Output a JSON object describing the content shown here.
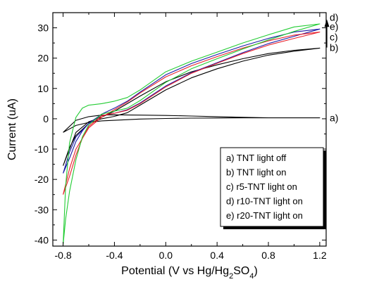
{
  "chart_data": {
    "type": "line",
    "title": "",
    "xlabel": "Potential (V vs Hg/Hg2SO4)",
    "xlabel_parts": {
      "prefix": "Potential (V vs Hg/Hg",
      "sub1": "2",
      "mid": "SO",
      "sub2": "4",
      "suffix": ")"
    },
    "ylabel": "Current (uA)",
    "xlim": [
      -0.88,
      1.25
    ],
    "ylim": [
      -42,
      35
    ],
    "xticks": [
      -0.8,
      -0.4,
      0.0,
      0.4,
      0.8,
      1.2
    ],
    "xtick_labels": [
      "-0.8",
      "-0.4",
      "0.0",
      "0.4",
      "0.8",
      "1.2"
    ],
    "yticks": [
      -40,
      -30,
      -20,
      -10,
      0,
      10,
      20,
      30
    ],
    "ytick_labels": [
      "-40",
      "-30",
      "-20",
      "-10",
      "0",
      "10",
      "20",
      "30"
    ],
    "grid": false,
    "legend_placement": "bottom-right",
    "legend": [
      "a) TNT light off",
      "b) TNT light on",
      "c) r5-TNT light on",
      "d) r10-TNT light on",
      "e) r20-TNT light on"
    ],
    "end_labels": [
      {
        "text": "d)",
        "y": 33.5
      },
      {
        "text": "e)",
        "y": 30.5
      },
      {
        "text": "c)",
        "y": 27.0
      },
      {
        "text": "b)",
        "y": 23.5
      },
      {
        "text": "a)",
        "y": 0.3
      }
    ],
    "series": [
      {
        "name": "a) TNT light off",
        "color": "#000000",
        "x": [
          -0.8,
          -0.7,
          -0.6,
          -0.5,
          -0.4,
          -0.3,
          -0.2,
          0.0,
          0.2,
          0.4,
          0.6,
          0.8,
          1.0,
          1.2,
          1.0,
          0.8,
          0.6,
          0.4,
          0.2,
          0.0,
          -0.2,
          -0.4,
          -0.5,
          -0.6,
          -0.7,
          -0.8
        ],
        "y": [
          -4.5,
          -2.2,
          -1.2,
          -0.7,
          -0.5,
          -0.3,
          -0.1,
          0.1,
          0.2,
          0.25,
          0.3,
          0.3,
          0.3,
          0.3,
          0.3,
          0.3,
          0.5,
          0.7,
          0.9,
          1.1,
          1.2,
          1.3,
          1.2,
          0.7,
          -0.5,
          -4.5
        ]
      },
      {
        "name": "b) TNT light on",
        "color": "#000000",
        "x": [
          -0.8,
          -0.75,
          -0.7,
          -0.6,
          -0.5,
          -0.4,
          -0.3,
          -0.2,
          0.0,
          0.2,
          0.4,
          0.6,
          0.8,
          1.0,
          1.2,
          1.0,
          0.8,
          0.6,
          0.4,
          0.2,
          0.0,
          -0.2,
          -0.3,
          -0.4,
          -0.5,
          -0.6,
          -0.7,
          -0.8
        ],
        "y": [
          -15.5,
          -9.5,
          -5.5,
          -1.5,
          0.0,
          0.8,
          2.0,
          4.5,
          9.5,
          13.5,
          16.5,
          19.0,
          21.0,
          22.3,
          23.3,
          22.6,
          21.5,
          19.8,
          17.8,
          15.5,
          12.2,
          7.5,
          5.0,
          2.5,
          0.5,
          -1.0,
          -4.5,
          -15.5
        ]
      },
      {
        "name": "c) r5-TNT light on",
        "color": "#e8202a",
        "x": [
          -0.8,
          -0.75,
          -0.7,
          -0.65,
          -0.6,
          -0.5,
          -0.4,
          -0.3,
          -0.2,
          0.0,
          0.2,
          0.4,
          0.6,
          0.8,
          1.0,
          1.2,
          1.0,
          0.8,
          0.6,
          0.4,
          0.2,
          0.0,
          -0.2,
          -0.3,
          -0.4,
          -0.5,
          -0.6,
          -0.7,
          -0.75,
          -0.8
        ],
        "y": [
          -25.0,
          -19.0,
          -12.0,
          -6.5,
          -2.5,
          1.0,
          1.8,
          2.8,
          5.0,
          10.5,
          15.0,
          18.3,
          21.5,
          24.3,
          26.5,
          28.6,
          27.6,
          25.7,
          23.3,
          20.5,
          17.5,
          13.8,
          8.5,
          5.5,
          3.0,
          0.5,
          -3.0,
          -10.0,
          -16.5,
          -25.0
        ]
      },
      {
        "name": "d) r10-TNT light on",
        "color": "#22cc33",
        "x": [
          -0.8,
          -0.78,
          -0.75,
          -0.7,
          -0.65,
          -0.6,
          -0.5,
          -0.4,
          -0.3,
          -0.2,
          0.0,
          0.2,
          0.4,
          0.6,
          0.8,
          1.0,
          1.2,
          1.0,
          0.8,
          0.6,
          0.4,
          0.2,
          0.0,
          -0.2,
          -0.3,
          -0.4,
          -0.5,
          -0.6,
          -0.65,
          -0.7,
          -0.75,
          -0.78,
          -0.8
        ],
        "y": [
          -41.5,
          -33.0,
          -24.0,
          -13.5,
          -6.0,
          -2.0,
          1.5,
          2.5,
          3.5,
          6.0,
          12.0,
          16.5,
          19.8,
          23.0,
          26.0,
          28.8,
          31.3,
          30.3,
          27.7,
          25.0,
          22.0,
          19.0,
          15.5,
          9.5,
          7.0,
          5.8,
          5.0,
          4.5,
          3.5,
          0.5,
          -8.0,
          -22.0,
          -41.5
        ]
      },
      {
        "name": "e) r20-TNT light on",
        "color": "#1a1aa6",
        "x": [
          -0.8,
          -0.75,
          -0.7,
          -0.65,
          -0.6,
          -0.5,
          -0.4,
          -0.3,
          -0.2,
          0.0,
          0.2,
          0.4,
          0.6,
          0.8,
          1.0,
          1.2,
          1.0,
          0.8,
          0.6,
          0.4,
          0.2,
          0.0,
          -0.2,
          -0.3,
          -0.4,
          -0.5,
          -0.6,
          -0.7,
          -0.75,
          -0.8
        ],
        "y": [
          -18.0,
          -13.0,
          -7.5,
          -4.0,
          -1.5,
          1.0,
          1.8,
          3.0,
          5.2,
          10.8,
          15.2,
          18.5,
          21.8,
          24.8,
          27.2,
          29.6,
          28.6,
          26.5,
          24.0,
          21.2,
          18.2,
          14.5,
          8.8,
          5.8,
          3.5,
          1.5,
          -1.5,
          -6.0,
          -11.0,
          -18.0
        ]
      }
    ]
  }
}
